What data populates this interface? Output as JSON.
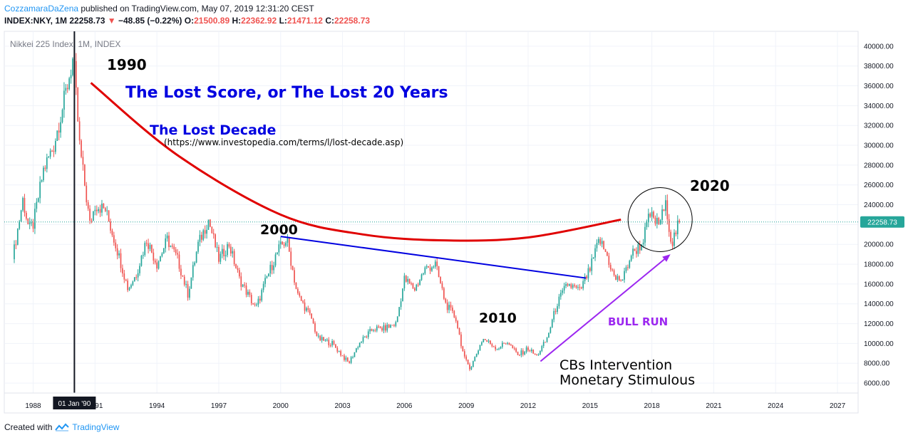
{
  "header": {
    "author": "CozzamaraDaZena",
    "published": " published on TradingView.com, May 07, 2019 12:31:20 CEST",
    "symbol": "INDEX:NKY, 1M",
    "last": "22258.73",
    "down_arrow": "▼",
    "change": "−48.85 (−0.22%)",
    "o_label": "O:",
    "o_value": "21500.89",
    "h_label": "H:",
    "h_value": "22362.92",
    "l_label": "L:",
    "l_value": "21471.12",
    "c_label": "C:",
    "c_value": "22258.73"
  },
  "footer": {
    "created_with": "Created with",
    "brand": "TradingView"
  },
  "colors": {
    "up": "#26a69a",
    "down": "#ef5350",
    "curve": "#e00000",
    "trendline": "#0000e0",
    "arrow": "#9c27f0",
    "price_label_bg": "#26a69a"
  },
  "chart_data": {
    "type": "candlestick",
    "title": "Nikkei 225 Index, 1M, INDEX",
    "x_ticks": [
      "1988",
      "1991",
      "1994",
      "1997",
      "2000",
      "2003",
      "2006",
      "2009",
      "2012",
      "2015",
      "2018",
      "2021",
      "2024",
      "2027"
    ],
    "y_ticks": [
      "6000.00",
      "8000.00",
      "10000.00",
      "12000.00",
      "14000.00",
      "16000.00",
      "18000.00",
      "20000.00",
      "22000.00",
      "24000.00",
      "26000.00",
      "28000.00",
      "30000.00",
      "32000.00",
      "34000.00",
      "36000.00",
      "38000.00",
      "40000.00"
    ],
    "ylim": [
      5000,
      41500
    ],
    "xlim": [
      1986.6,
      2028.0
    ],
    "last_price_label": "22258.73",
    "crosshair_date_label": "01 Jan '90",
    "crosshair_x": 1990.0,
    "close_series": [
      [
        1987.0,
        18500
      ],
      [
        1987.5,
        24500
      ],
      [
        1987.8,
        21500
      ],
      [
        1988.0,
        22000
      ],
      [
        1988.5,
        27500
      ],
      [
        1989.0,
        30000
      ],
      [
        1989.5,
        34500
      ],
      [
        1989.95,
        38900
      ],
      [
        1990.25,
        30000
      ],
      [
        1990.75,
        22000
      ],
      [
        1991.0,
        24000
      ],
      [
        1991.5,
        23500
      ],
      [
        1992.0,
        20000
      ],
      [
        1992.6,
        15500
      ],
      [
        1993.0,
        17000
      ],
      [
        1993.5,
        20500
      ],
      [
        1994.0,
        18000
      ],
      [
        1994.5,
        20500
      ],
      [
        1995.0,
        18500
      ],
      [
        1995.5,
        15000
      ],
      [
        1996.0,
        20000
      ],
      [
        1996.5,
        22500
      ],
      [
        1997.0,
        18500
      ],
      [
        1997.5,
        20000
      ],
      [
        1998.0,
        16500
      ],
      [
        1998.8,
        13500
      ],
      [
        1999.3,
        16500
      ],
      [
        1999.9,
        19500
      ],
      [
        2000.3,
        20500
      ],
      [
        2000.8,
        15000
      ],
      [
        2001.5,
        12500
      ],
      [
        2001.8,
        10500
      ],
      [
        2002.5,
        10000
      ],
      [
        2003.3,
        8000
      ],
      [
        2003.8,
        10000
      ],
      [
        2004.5,
        11500
      ],
      [
        2005.0,
        11500
      ],
      [
        2005.6,
        12000
      ],
      [
        2006.0,
        16500
      ],
      [
        2006.5,
        15500
      ],
      [
        2007.0,
        17500
      ],
      [
        2007.5,
        18000
      ],
      [
        2008.0,
        14000
      ],
      [
        2008.5,
        12500
      ],
      [
        2008.9,
        8500
      ],
      [
        2009.2,
        7500
      ],
      [
        2009.8,
        10500
      ],
      [
        2010.5,
        9500
      ],
      [
        2011.0,
        10200
      ],
      [
        2011.5,
        8800
      ],
      [
        2012.0,
        9500
      ],
      [
        2012.4,
        8700
      ],
      [
        2012.9,
        10400
      ],
      [
        2013.4,
        14000
      ],
      [
        2013.9,
        16000
      ],
      [
        2014.5,
        15300
      ],
      [
        2015.0,
        17500
      ],
      [
        2015.45,
        20500
      ],
      [
        2015.8,
        19000
      ],
      [
        2016.2,
        16500
      ],
      [
        2016.6,
        16500
      ],
      [
        2017.0,
        19000
      ],
      [
        2017.5,
        20000
      ],
      [
        2017.9,
        23000
      ],
      [
        2018.3,
        22000
      ],
      [
        2018.7,
        24000
      ],
      [
        2018.95,
        20000
      ],
      [
        2019.33,
        22258
      ]
    ],
    "annotations": {
      "y1990": "1990",
      "headline": "The Lost Score, or The Lost 20 Years",
      "lost_decade": "The Lost Decade",
      "lost_decade_url": "(https://www.investopedia.com/terms/l/lost-decade.asp)",
      "y2000": "2000",
      "y2010": "2010",
      "y2020": "2020",
      "bull_run": "BULL RUN",
      "cbs_line1": "CBs Intervention",
      "cbs_line2": "Monetary Stimulous"
    },
    "trendline": {
      "from": [
        2000.0,
        20800
      ],
      "to": [
        2014.8,
        16600
      ]
    },
    "bull_arrow": {
      "from": [
        2012.6,
        8200
      ],
      "to": [
        2018.9,
        19000
      ]
    },
    "red_curve": [
      [
        1990.8,
        36300
      ],
      [
        1995.0,
        29000
      ],
      [
        2000.0,
        23000
      ],
      [
        2004.0,
        21000
      ],
      [
        2008.0,
        20400
      ],
      [
        2012.0,
        20700
      ],
      [
        2016.5,
        22500
      ]
    ],
    "circle_center": [
      2018.4,
      22500
    ]
  }
}
